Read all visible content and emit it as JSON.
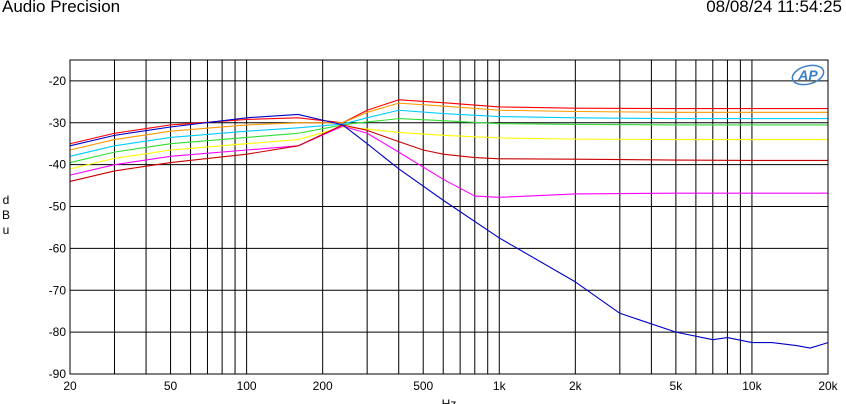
{
  "header": {
    "app_title": "Audio Precision",
    "timestamp": "08/08/24 11:54:25"
  },
  "logo": {
    "text": "AP"
  },
  "chart_data": {
    "type": "line",
    "title": "",
    "xlabel": "Hz",
    "ylabel": "dBu",
    "xscale": "log",
    "xlim": [
      20,
      20000
    ],
    "ylim": [
      -90,
      -15
    ],
    "grid": true,
    "x_ticks": [
      {
        "v": 20,
        "label": "20"
      },
      {
        "v": 50,
        "label": "50"
      },
      {
        "v": 100,
        "label": "100"
      },
      {
        "v": 200,
        "label": "200"
      },
      {
        "v": 500,
        "label": "500"
      },
      {
        "v": 1000,
        "label": "1k"
      },
      {
        "v": 2000,
        "label": "2k"
      },
      {
        "v": 5000,
        "label": "5k"
      },
      {
        "v": 10000,
        "label": "10k"
      },
      {
        "v": 20000,
        "label": "20k"
      }
    ],
    "y_ticks": [
      -20,
      -30,
      -40,
      -50,
      -60,
      -70,
      -80,
      -90
    ],
    "series": [
      {
        "color": "#ff0000",
        "x": [
          20,
          30,
          50,
          100,
          160,
          240,
          300,
          400,
          600,
          1000,
          2000,
          5000,
          10000,
          20000
        ],
        "y": [
          -35,
          -32.5,
          -30.5,
          -29.2,
          -28.8,
          -30,
          -27,
          -24.5,
          -25.2,
          -26.2,
          -26.5,
          -26.6,
          -26.6,
          -26.6
        ]
      },
      {
        "color": "#ff9900",
        "x": [
          20,
          30,
          50,
          100,
          160,
          240,
          300,
          400,
          600,
          1000,
          2000,
          5000,
          10000,
          20000
        ],
        "y": [
          -36.5,
          -34,
          -32,
          -30.5,
          -30,
          -30,
          -27.5,
          -25.3,
          -26,
          -27,
          -27.3,
          -27.5,
          -27.5,
          -27.5
        ]
      },
      {
        "color": "#00ccff",
        "x": [
          20,
          30,
          50,
          100,
          160,
          240,
          300,
          400,
          600,
          1000,
          2000,
          5000,
          10000,
          20000
        ],
        "y": [
          -38,
          -35.5,
          -33.5,
          -32,
          -31.2,
          -30.3,
          -28.8,
          -27,
          -27.8,
          -28.5,
          -28.8,
          -29,
          -29,
          -29
        ]
      },
      {
        "color": "#33dd33",
        "x": [
          20,
          30,
          50,
          100,
          160,
          240,
          300,
          400,
          600,
          1000,
          2000,
          5000,
          10000,
          20000
        ],
        "y": [
          -39.5,
          -37,
          -35,
          -33.5,
          -32.5,
          -30.5,
          -29.8,
          -29,
          -29.5,
          -30.2,
          -30.4,
          -30.5,
          -30.5,
          -30.5
        ]
      },
      {
        "color": "#ffff00",
        "x": [
          20,
          30,
          50,
          100,
          160,
          240,
          300,
          400,
          600,
          1000,
          2000,
          5000,
          10000,
          20000
        ],
        "y": [
          -41,
          -38.5,
          -36.5,
          -35,
          -34,
          -31,
          -31.5,
          -32.3,
          -33,
          -33.6,
          -33.9,
          -34,
          -34,
          -34
        ]
      },
      {
        "color": "#ff00ff",
        "x": [
          20,
          30,
          50,
          100,
          160,
          240,
          300,
          400,
          600,
          800,
          1000,
          2000,
          5000,
          10000,
          20000
        ],
        "y": [
          -42.5,
          -40,
          -38,
          -36.5,
          -35.5,
          -30.8,
          -32.5,
          -37,
          -43.5,
          -47.5,
          -47.8,
          -47,
          -46.8,
          -46.8,
          -46.8
        ]
      },
      {
        "color": "#cc0000",
        "x": [
          20,
          30,
          50,
          100,
          160,
          240,
          300,
          400,
          500,
          600,
          800,
          1000,
          2000,
          5000,
          10000,
          20000
        ],
        "y": [
          -44,
          -41.5,
          -39.5,
          -37.5,
          -35.5,
          -30.5,
          -31.8,
          -34.5,
          -36.5,
          -37.5,
          -38.3,
          -38.6,
          -38.7,
          -38.9,
          -39,
          -39
        ]
      },
      {
        "color": "#0000cc",
        "x": [
          20,
          30,
          50,
          100,
          160,
          240,
          300,
          400,
          600,
          1000,
          2000,
          3000,
          5000,
          7000,
          8000,
          10000,
          12000,
          15000,
          17000,
          20000
        ],
        "y": [
          -35.5,
          -33,
          -31,
          -28.8,
          -28,
          -30.5,
          -35,
          -41,
          -48.5,
          -57.5,
          -68,
          -75.5,
          -80,
          -81.8,
          -81.3,
          -82.5,
          -82.5,
          -83.2,
          -83.8,
          -82.5
        ]
      }
    ]
  }
}
